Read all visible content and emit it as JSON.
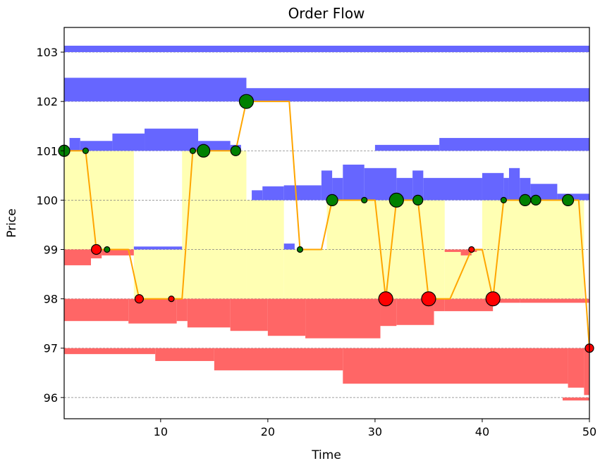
{
  "chart_data": {
    "type": "order_flow",
    "title": "Order Flow",
    "xlabel": "Time",
    "ylabel": "Price",
    "xlim": [
      1,
      50
    ],
    "ylim": [
      95.57,
      103.5
    ],
    "x_ticks": [
      10,
      20,
      30,
      40,
      50
    ],
    "y_ticks": [
      96,
      97,
      98,
      99,
      100,
      101,
      102,
      103
    ],
    "grid": "horizontal dashed gridlines at each price tick",
    "colors": {
      "ask_depth": "#6666ff",
      "bid_depth": "#ff6666",
      "spread_fill": "#ffffb3",
      "price_line": "#ffa500",
      "buy_marker": "#008000",
      "sell_marker": "#ff0000",
      "marker_edge": "#000000"
    },
    "ask_depth": [
      {
        "level": 103,
        "segments": [
          [
            1,
            50,
            0.13
          ]
        ]
      },
      {
        "level": 102,
        "segments": [
          [
            1,
            18,
            0.48
          ],
          [
            18,
            50,
            0.27
          ]
        ]
      },
      {
        "level": 101,
        "segments": [
          [
            1,
            1.5,
            0.02
          ],
          [
            1.5,
            2.5,
            0.26
          ],
          [
            2.5,
            5.5,
            0.2
          ],
          [
            5.5,
            8.5,
            0.35
          ],
          [
            8.5,
            13.5,
            0.45
          ],
          [
            13.5,
            16.5,
            0.2
          ],
          [
            16.5,
            17.5,
            0.12
          ],
          [
            30,
            36,
            0.12
          ],
          [
            36,
            50,
            0.26
          ]
        ]
      },
      {
        "level": 100,
        "segments": [
          [
            18.5,
            19.5,
            0.2
          ],
          [
            19.5,
            21.5,
            0.28
          ],
          [
            21.5,
            25,
            0.3
          ],
          [
            25,
            26,
            0.6
          ],
          [
            26,
            27,
            0.45
          ],
          [
            27,
            29,
            0.72
          ],
          [
            29,
            32,
            0.65
          ],
          [
            32,
            33.5,
            0.45
          ],
          [
            33.5,
            34.5,
            0.6
          ],
          [
            34.5,
            40,
            0.45
          ],
          [
            40,
            42,
            0.55
          ],
          [
            42,
            42.5,
            0.45
          ],
          [
            42.5,
            43.5,
            0.65
          ],
          [
            43.5,
            44.5,
            0.45
          ],
          [
            44.5,
            47,
            0.33
          ],
          [
            47,
            50,
            0.13
          ]
        ]
      },
      {
        "level": 99,
        "segments": [
          [
            7.5,
            12,
            0.06
          ],
          [
            21.5,
            22.5,
            0.12
          ]
        ]
      }
    ],
    "bid_depth": [
      {
        "level": 99,
        "segments": [
          [
            1,
            3.5,
            0.32
          ],
          [
            3.5,
            4.5,
            0.18
          ],
          [
            4.5,
            7.5,
            0.12
          ],
          [
            36.5,
            38,
            0.05
          ],
          [
            38,
            39,
            0.12
          ],
          [
            39,
            39.5,
            0.05
          ],
          [
            39.5,
            40,
            0.02
          ]
        ]
      },
      {
        "level": 98,
        "segments": [
          [
            1,
            7,
            0.45
          ],
          [
            7,
            11.5,
            0.5
          ],
          [
            11.5,
            12.5,
            0.45
          ],
          [
            12.5,
            16.5,
            0.58
          ],
          [
            16.5,
            20,
            0.65
          ],
          [
            20,
            23.5,
            0.75
          ],
          [
            23.5,
            30.5,
            0.8
          ],
          [
            30.5,
            32,
            0.55
          ],
          [
            32,
            35.5,
            0.53
          ],
          [
            35.5,
            36.5,
            0.25
          ],
          [
            36.5,
            41,
            0.25
          ],
          [
            41,
            43.5,
            0.08
          ],
          [
            43.5,
            50,
            0.08
          ]
        ]
      },
      {
        "level": 97,
        "segments": [
          [
            1,
            9.5,
            0.12
          ],
          [
            9.5,
            15,
            0.26
          ],
          [
            15,
            27,
            0.45
          ],
          [
            27,
            48,
            0.72
          ],
          [
            48,
            49.5,
            0.8
          ],
          [
            49.5,
            50,
            0.95
          ]
        ]
      },
      {
        "level": 96,
        "segments": [
          [
            47.5,
            50,
            0.06
          ]
        ]
      }
    ],
    "spread_bands": [
      [
        1,
        7.5,
        99,
        101
      ],
      [
        7.5,
        12,
        98,
        99
      ],
      [
        12,
        18,
        98,
        101
      ],
      [
        18,
        21.5,
        98,
        100
      ],
      [
        21.5,
        25.5,
        98,
        99
      ],
      [
        25.5,
        36.5,
        98,
        100
      ],
      [
        36.5,
        40,
        98,
        99
      ],
      [
        40,
        49.5,
        98,
        100
      ]
    ],
    "price_series": [
      [
        1,
        101
      ],
      [
        3,
        101
      ],
      [
        4,
        99
      ],
      [
        5,
        99
      ],
      [
        7,
        99
      ],
      [
        8,
        98
      ],
      [
        11,
        98
      ],
      [
        12,
        98
      ],
      [
        13,
        101
      ],
      [
        14,
        101
      ],
      [
        17,
        101
      ],
      [
        18,
        102
      ],
      [
        22,
        102
      ],
      [
        23,
        99
      ],
      [
        25,
        99
      ],
      [
        26,
        100
      ],
      [
        29,
        100
      ],
      [
        30,
        100
      ],
      [
        31,
        98
      ],
      [
        32,
        100
      ],
      [
        34,
        100
      ],
      [
        35,
        98
      ],
      [
        37,
        98
      ],
      [
        39,
        99
      ],
      [
        40,
        99
      ],
      [
        41,
        98
      ],
      [
        42,
        100
      ],
      [
        44,
        100
      ],
      [
        45,
        100
      ],
      [
        48,
        100
      ],
      [
        49,
        100
      ],
      [
        50,
        97
      ]
    ],
    "trades": [
      {
        "x": 1,
        "y": 101,
        "side": "buy",
        "size": 8
      },
      {
        "x": 3,
        "y": 101,
        "side": "buy",
        "size": 4
      },
      {
        "x": 4,
        "y": 99,
        "side": "sell",
        "size": 7
      },
      {
        "x": 5,
        "y": 99,
        "side": "buy",
        "size": 4
      },
      {
        "x": 8,
        "y": 98,
        "side": "sell",
        "size": 6
      },
      {
        "x": 11,
        "y": 98,
        "side": "sell",
        "size": 4
      },
      {
        "x": 13,
        "y": 101,
        "side": "buy",
        "size": 4
      },
      {
        "x": 14,
        "y": 101,
        "side": "buy",
        "size": 9
      },
      {
        "x": 17,
        "y": 101,
        "side": "buy",
        "size": 7
      },
      {
        "x": 18,
        "y": 102,
        "side": "buy",
        "size": 10
      },
      {
        "x": 23,
        "y": 99,
        "side": "buy",
        "size": 4
      },
      {
        "x": 26,
        "y": 100,
        "side": "buy",
        "size": 8
      },
      {
        "x": 29,
        "y": 100,
        "side": "buy",
        "size": 4
      },
      {
        "x": 31,
        "y": 98,
        "side": "sell",
        "size": 10
      },
      {
        "x": 32,
        "y": 100,
        "side": "buy",
        "size": 10
      },
      {
        "x": 34,
        "y": 100,
        "side": "buy",
        "size": 7
      },
      {
        "x": 35,
        "y": 98,
        "side": "sell",
        "size": 10
      },
      {
        "x": 39,
        "y": 99,
        "side": "sell",
        "size": 4
      },
      {
        "x": 41,
        "y": 98,
        "side": "sell",
        "size": 10
      },
      {
        "x": 42,
        "y": 100,
        "side": "buy",
        "size": 4
      },
      {
        "x": 44,
        "y": 100,
        "side": "buy",
        "size": 8
      },
      {
        "x": 45,
        "y": 100,
        "side": "buy",
        "size": 7
      },
      {
        "x": 48,
        "y": 100,
        "side": "buy",
        "size": 8
      },
      {
        "x": 50,
        "y": 97,
        "side": "sell",
        "size": 6
      }
    ]
  }
}
